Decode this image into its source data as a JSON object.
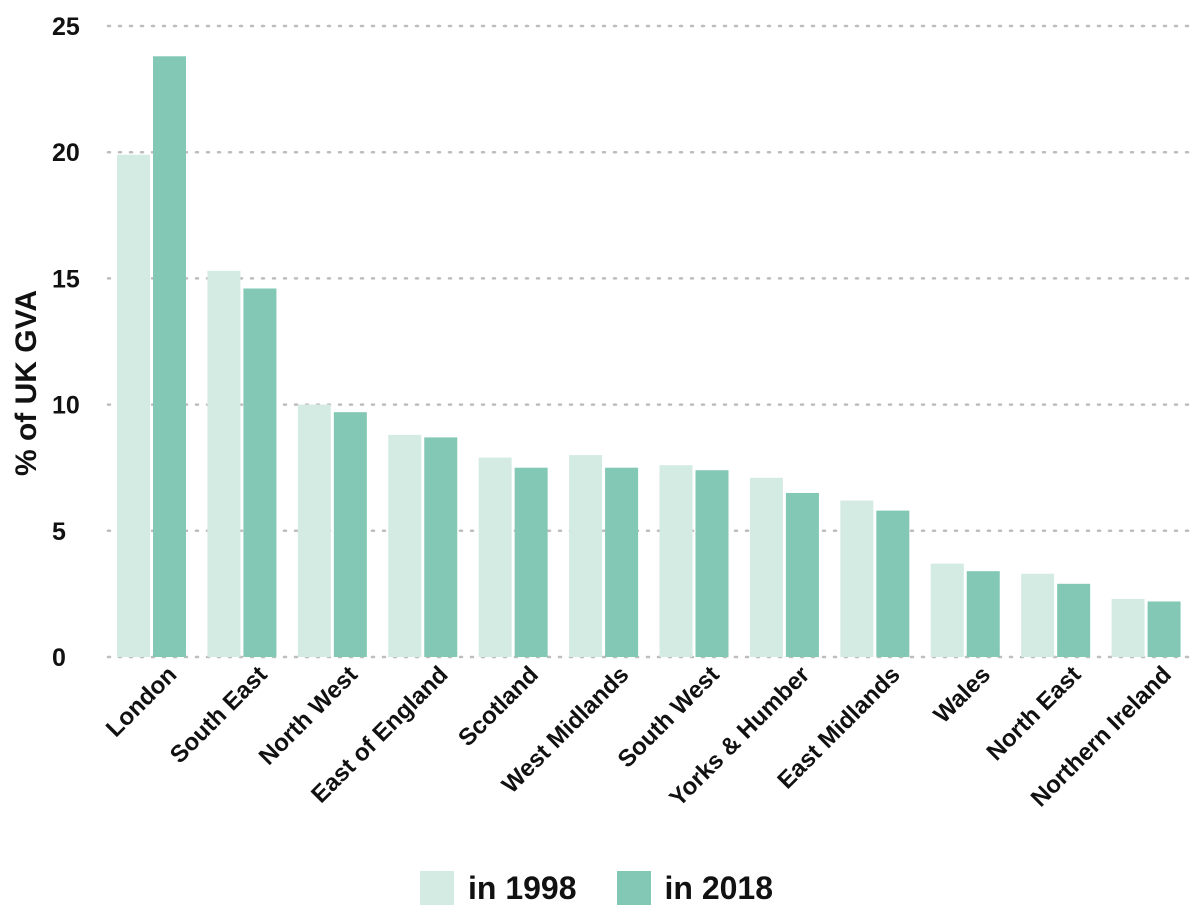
{
  "chart_data": {
    "type": "bar",
    "ylabel": "% of UK GVA",
    "xlabel": "",
    "ylim": [
      0,
      25
    ],
    "yticks": [
      "0",
      "5",
      "10",
      "15",
      "20",
      "25"
    ],
    "grid": "horizontal dotted",
    "legend_position": "bottom",
    "categories": [
      "London",
      "South East",
      "North West",
      "East of England",
      "Scotland",
      "West Midlands",
      "South West",
      "Yorks & Humber",
      "East Midlands",
      "Wales",
      "North East",
      "Northern Ireland"
    ],
    "series": [
      {
        "name": "in 1998",
        "color": "#d4ebe3",
        "values": [
          19.9,
          15.3,
          10.0,
          8.8,
          7.9,
          8.0,
          7.6,
          7.1,
          6.2,
          3.7,
          3.3,
          2.3
        ]
      },
      {
        "name": "in 2018",
        "color": "#82c8b4",
        "values": [
          23.8,
          14.6,
          9.7,
          8.7,
          7.5,
          7.5,
          7.4,
          6.5,
          5.8,
          3.4,
          2.9,
          2.2
        ]
      }
    ]
  }
}
